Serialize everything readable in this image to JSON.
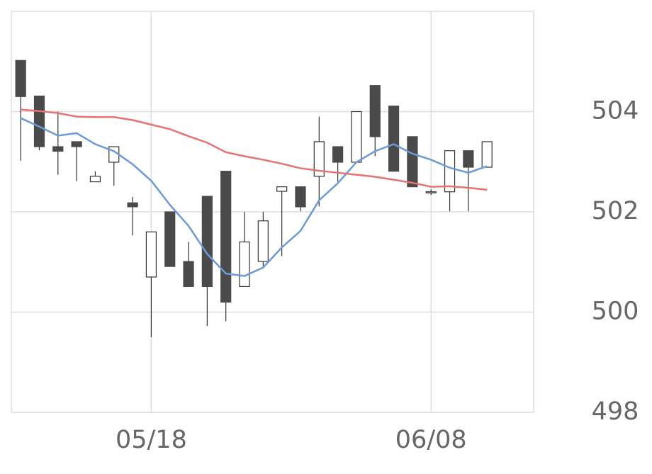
{
  "chart_data": {
    "type": "candlestick",
    "categories": [
      null,
      null,
      null,
      null,
      null,
      null,
      null,
      "05/18",
      null,
      null,
      null,
      null,
      null,
      null,
      null,
      null,
      null,
      null,
      null,
      null,
      null,
      null,
      "06/08",
      null,
      null,
      null
    ],
    "open": [
      505.02,
      504.31,
      503.3,
      503.4,
      502.6,
      502.99,
      502.18,
      500.7,
      502.0,
      501.01,
      502.31,
      502.81,
      500.51,
      501.01,
      502.41,
      502.5,
      502.71,
      503.3,
      502.99,
      504.52,
      504.11,
      503.5,
      502.4,
      502.4,
      503.22,
      502.89
    ],
    "high": [
      505.02,
      504.31,
      504.0,
      503.4,
      502.81,
      503.3,
      502.3,
      501.6,
      502.0,
      501.4,
      502.31,
      502.81,
      502.0,
      502.0,
      502.5,
      502.5,
      503.9,
      503.3,
      504.0,
      504.52,
      504.11,
      503.5,
      502.45,
      503.22,
      503.22,
      503.4
    ],
    "low": [
      503.02,
      503.23,
      502.74,
      502.61,
      502.6,
      502.52,
      501.53,
      499.5,
      500.91,
      500.51,
      499.72,
      499.82,
      500.51,
      500.92,
      501.12,
      502.01,
      502.11,
      502.6,
      502.99,
      503.11,
      502.81,
      502.5,
      502.34,
      502.01,
      502.01,
      502.89
    ],
    "close": [
      504.3,
      503.3,
      503.21,
      503.3,
      502.71,
      503.3,
      502.1,
      501.6,
      500.91,
      500.51,
      500.51,
      500.2,
      501.4,
      501.82,
      502.5,
      502.1,
      503.4,
      502.99,
      504.0,
      503.5,
      502.81,
      502.5,
      502.4,
      503.22,
      502.89,
      503.4
    ],
    "up_color": "#ffffff",
    "down_color": "#4a4a4a",
    "lines": [
      {
        "color": "#6a9bd8",
        "values": [
          503.87,
          503.7,
          503.52,
          503.57,
          503.35,
          503.21,
          502.95,
          502.62,
          502.14,
          501.72,
          501.16,
          500.77,
          500.72,
          500.89,
          501.29,
          501.62,
          502.23,
          502.57,
          502.99,
          503.21,
          503.35,
          503.16,
          503.04,
          502.88,
          502.78,
          502.91
        ]
      },
      {
        "color": "#e57373",
        "values": [
          504.04,
          504.01,
          503.97,
          503.9,
          503.89,
          503.89,
          503.83,
          503.74,
          503.65,
          503.51,
          503.38,
          503.19,
          503.11,
          503.04,
          502.96,
          502.87,
          502.82,
          502.78,
          502.74,
          502.7,
          502.64,
          502.58,
          502.5,
          502.51,
          502.48,
          502.44
        ]
      }
    ],
    "ylim": [
      498,
      506
    ],
    "yticks": [
      498,
      500,
      502,
      504
    ],
    "grid": true
  }
}
